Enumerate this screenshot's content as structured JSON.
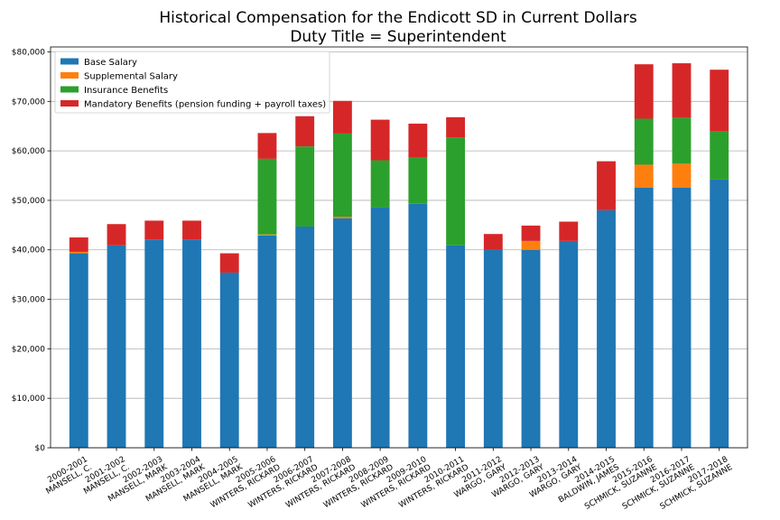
{
  "chart_data": {
    "type": "bar",
    "stacked": true,
    "title": "Historical Compensation for the Endicott SD in Current Dollars",
    "subtitle": "Duty Title = Superintendent",
    "xlabel": "",
    "ylabel": "",
    "ylim": [
      0,
      81000
    ],
    "grid": "horizontal",
    "legend_position": "top-left",
    "y_ticks": [
      "$0",
      "$10,000",
      "$20,000",
      "$30,000",
      "$40,000",
      "$50,000",
      "$60,000",
      "$70,000",
      "$80,000"
    ],
    "y_tick_values": [
      0,
      10000,
      20000,
      30000,
      40000,
      50000,
      60000,
      70000,
      80000
    ],
    "categories": [
      [
        "2000-2001",
        "MANSELL, C."
      ],
      [
        "2001-2002",
        "MANSELL, C."
      ],
      [
        "2002-2003",
        "MANSELL, MARK"
      ],
      [
        "2003-2004",
        "MANSELL, MARK"
      ],
      [
        "2004-2005",
        "MANSELL, MARK"
      ],
      [
        "2005-2006",
        "WINTERS, RICKARD"
      ],
      [
        "2006-2007",
        "WINTERS, RICKARD"
      ],
      [
        "2007-2008",
        "WINTERS, RICKARD"
      ],
      [
        "2008-2009",
        "WINTERS, RICKARD"
      ],
      [
        "2009-2010",
        "WINTERS, RICKARD"
      ],
      [
        "2010-2011",
        "WINTERS, RICKARD"
      ],
      [
        "2011-2012",
        "WARGO, GARY"
      ],
      [
        "2012-2013",
        "WARGO, GARY"
      ],
      [
        "2013-2014",
        "WARGO, GARY"
      ],
      [
        "2014-2015",
        "BALDWIN, JAMES"
      ],
      [
        "2015-2016",
        "SCHMICK, SUZANNE"
      ],
      [
        "2016-2017",
        "SCHMICK, SUZANNE"
      ],
      [
        "2017-2018",
        "SCHMICK, SUZANNE"
      ]
    ],
    "series": [
      {
        "name": "Base Salary",
        "color": "#1f77b4",
        "values": [
          39300,
          40900,
          42100,
          42100,
          35400,
          42900,
          44700,
          46400,
          48600,
          49300,
          40900,
          40000,
          40000,
          41800,
          48000,
          52600,
          52600,
          54200
        ]
      },
      {
        "name": "Supplemental Salary",
        "color": "#ff7f0e",
        "values": [
          300,
          0,
          0,
          0,
          0,
          200,
          0,
          300,
          0,
          0,
          0,
          0,
          1800,
          0,
          0,
          4600,
          4800,
          0
        ]
      },
      {
        "name": "Insurance Benefits",
        "color": "#2ca02c",
        "values": [
          0,
          0,
          0,
          0,
          0,
          15300,
          16200,
          16800,
          9500,
          9300,
          21800,
          0,
          0,
          0,
          0,
          9300,
          9300,
          9700
        ]
      },
      {
        "name": "Mandatory Benefits (pension funding + payroll taxes)",
        "color": "#d62728",
        "values": [
          2900,
          4300,
          3800,
          3800,
          3900,
          5200,
          6100,
          6600,
          8200,
          6900,
          4100,
          3200,
          3100,
          3900,
          9900,
          11000,
          11000,
          12500
        ]
      }
    ]
  }
}
